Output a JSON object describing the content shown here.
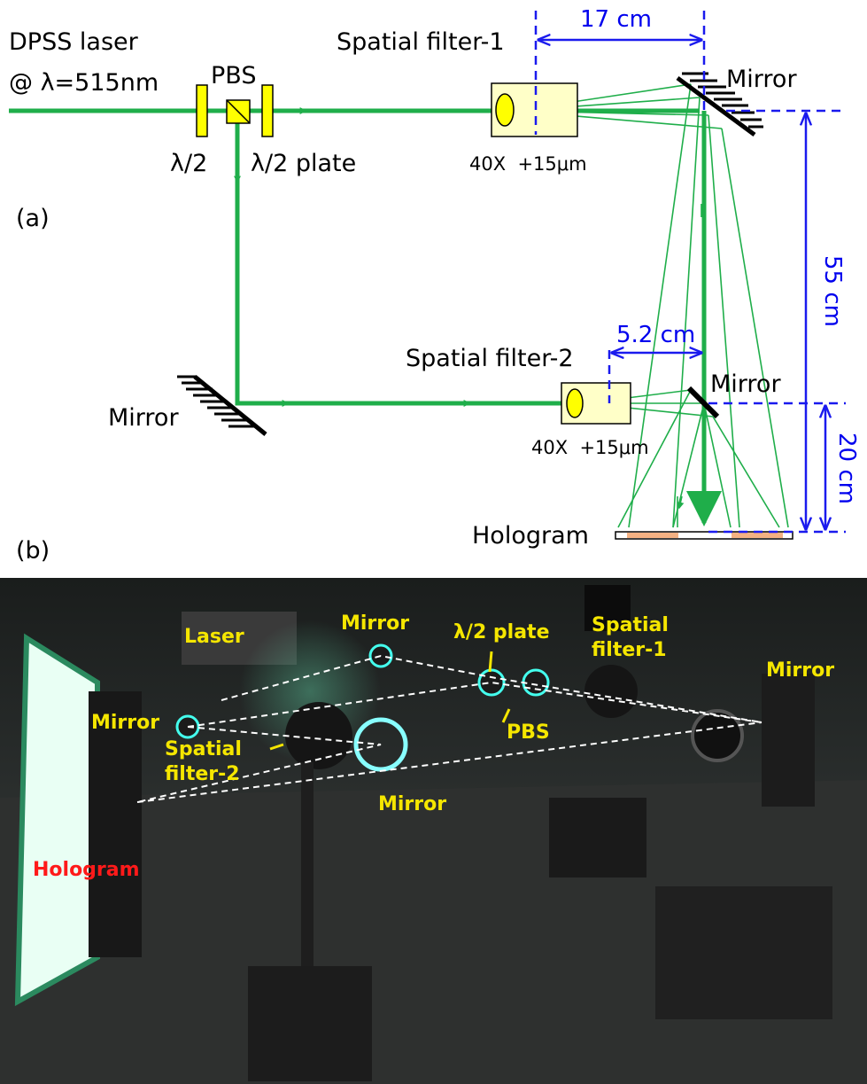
{
  "panel_a": {
    "label": "(a)",
    "laser": [
      "DPSS laser",
      "@ λ=515nm"
    ],
    "pbs": "PBS",
    "half_wave": "λ/2",
    "half_wave_plate": "λ/2 plate",
    "spatial_filter_1": "Spatial filter-1",
    "dist_17": "17 cm",
    "mirror_1": "Mirror",
    "objective_1": "40X  +15μm",
    "dist_55": "55 cm",
    "spatial_filter_2": "Spatial filter-2",
    "dist_5_2": "5.2 cm",
    "mirror_2": "Mirror",
    "mirror_3": "Mirror",
    "objective_2": "40X  +15μm",
    "dist_20": "20 cm",
    "hologram": "Hologram"
  },
  "panel_b": {
    "label": "(b)",
    "photo_labels": [
      "Laser",
      "Mirror",
      "λ/2 plate",
      "Spatial",
      "filter-1",
      "Mirror",
      "Mirror",
      "PBS",
      "Spatial",
      "filter-2",
      "Mirror",
      "Hologram"
    ]
  }
}
